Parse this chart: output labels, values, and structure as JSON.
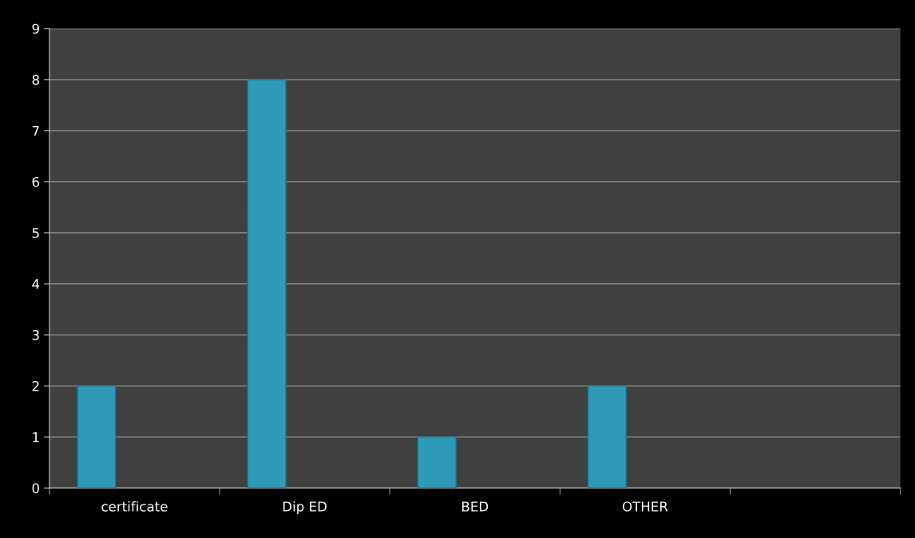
{
  "chart_data": {
    "type": "bar",
    "categories": [
      "certificate",
      "Dip ED",
      "BED",
      "OTHER",
      null
    ],
    "values": [
      2,
      8,
      1,
      2,
      null
    ],
    "color": "#2e9ab8",
    "ylim": [
      0,
      9
    ],
    "yticks": [
      0,
      1,
      2,
      3,
      4,
      5,
      6,
      7,
      8,
      9
    ],
    "grid": "y"
  }
}
